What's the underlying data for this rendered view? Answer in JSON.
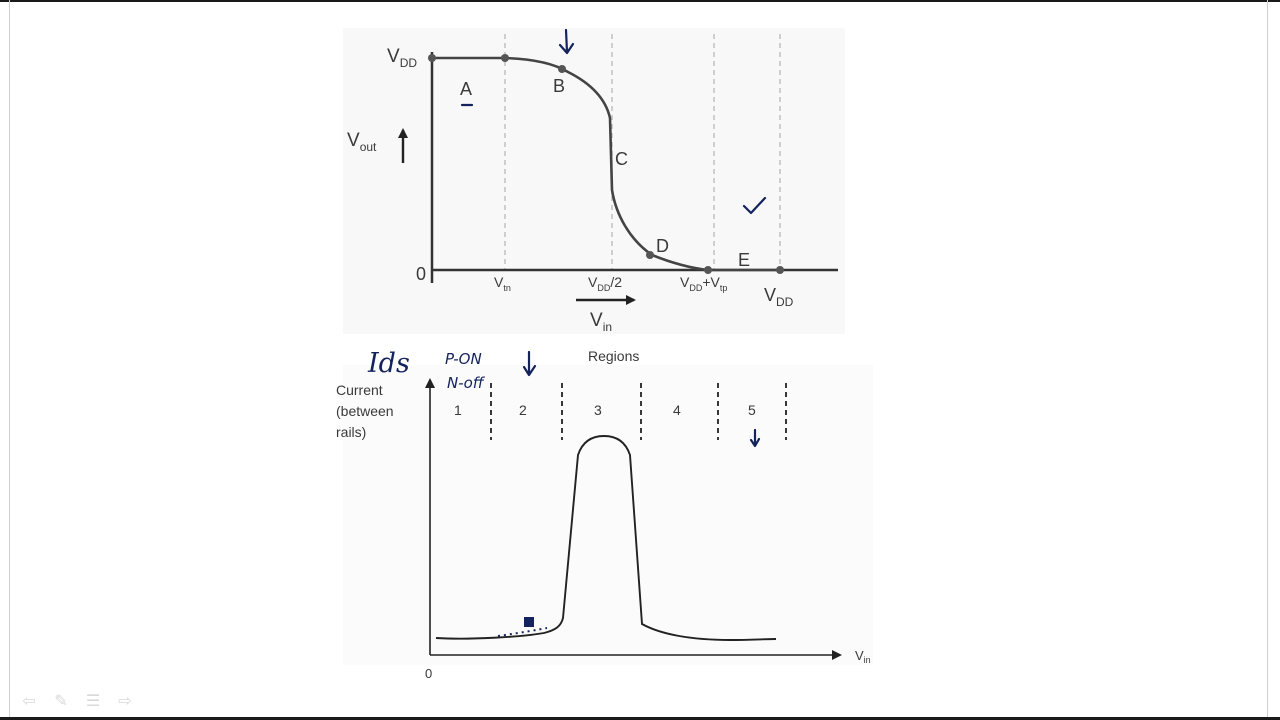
{
  "vtc": {
    "vdd": "V",
    "vdd_sub": "DD",
    "vout": "V",
    "vout_sub": "out",
    "zero": "0",
    "vtn": "V",
    "vtn_sub": "tn",
    "vdd_half": "V",
    "vdd_half_sub": "DD",
    "vdd_half_suffix": "/2",
    "vdd_vtp": "V",
    "vdd_vtp_sub": "DD",
    "vdd_vtp_plus": "+V",
    "vdd_vtp_sub2": "tp",
    "vdd_right": "V",
    "vdd_right_sub": "DD",
    "vin": "V",
    "vin_sub": "in",
    "region_labels": [
      "A",
      "B",
      "C",
      "D",
      "E"
    ]
  },
  "current_plot": {
    "title": "Regions",
    "ylabel": [
      "Current",
      "(between",
      "rails)"
    ],
    "region_numbers": [
      "1",
      "2",
      "3",
      "4",
      "5"
    ],
    "origin": "0",
    "xlabel": "V",
    "xlabel_sub": "in"
  },
  "annotations": {
    "ids": "Ids",
    "p_on": "P-ON",
    "n_off": "N-off"
  },
  "colors": {
    "ink": "#14235c",
    "plot_line": "#3a3a3a",
    "gridline": "#bdbdbd"
  },
  "navigation": [
    "arrow-left-icon",
    "pen-icon",
    "menu-icon",
    "arrow-right-icon"
  ]
}
